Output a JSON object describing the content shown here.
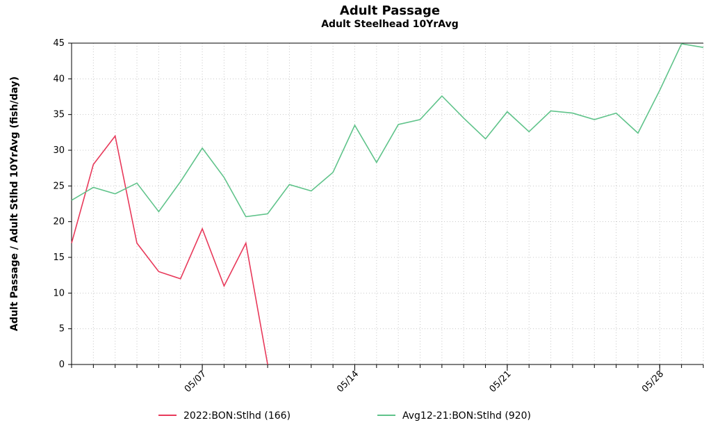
{
  "chart_data": {
    "type": "line",
    "title": "Adult Passage",
    "subtitle": "Adult Steelhead 10YrAvg",
    "ylabel": "Adult Passage / Adult Stlhd 10YrAvg (fish/day)",
    "xlabel": "",
    "ylim": [
      0,
      45
    ],
    "yticks": [
      0,
      5,
      10,
      15,
      20,
      25,
      30,
      35,
      40,
      45
    ],
    "xlim": [
      "2022-05-01",
      "2022-05-30"
    ],
    "xticks": [
      {
        "date": "2022-05-07",
        "label": "05/07"
      },
      {
        "date": "2022-05-14",
        "label": "05/14"
      },
      {
        "date": "2022-05-21",
        "label": "05/21"
      },
      {
        "date": "2022-05-28",
        "label": "05/28"
      }
    ],
    "grid": true,
    "legend_position": "bottom",
    "series": [
      {
        "name": "2022:BON:Stlhd (166)",
        "color": "#e8395a",
        "x": [
          "2022-05-01",
          "2022-05-02",
          "2022-05-03",
          "2022-05-04",
          "2022-05-05",
          "2022-05-06",
          "2022-05-07",
          "2022-05-08",
          "2022-05-09",
          "2022-05-10"
        ],
        "y": [
          17,
          28,
          32,
          17,
          13,
          12,
          19,
          11,
          17,
          0
        ]
      },
      {
        "name": "Avg12-21:BON:Stlhd (920)",
        "color": "#5fc38a",
        "x": [
          "2022-05-01",
          "2022-05-02",
          "2022-05-03",
          "2022-05-04",
          "2022-05-05",
          "2022-05-06",
          "2022-05-07",
          "2022-05-08",
          "2022-05-09",
          "2022-05-10",
          "2022-05-11",
          "2022-05-12",
          "2022-05-13",
          "2022-05-14",
          "2022-05-15",
          "2022-05-16",
          "2022-05-17",
          "2022-05-18",
          "2022-05-19",
          "2022-05-20",
          "2022-05-21",
          "2022-05-22",
          "2022-05-23",
          "2022-05-24",
          "2022-05-25",
          "2022-05-26",
          "2022-05-27",
          "2022-05-28",
          "2022-05-29",
          "2022-05-30"
        ],
        "y": [
          23,
          24.8,
          23.9,
          25.4,
          21.4,
          25.6,
          30.3,
          26.2,
          20.7,
          21.1,
          25.2,
          24.3,
          26.9,
          33.5,
          28.3,
          33.6,
          34.3,
          37.6,
          34.5,
          31.6,
          35.4,
          32.6,
          35.5,
          35.2,
          34.3,
          35.2,
          32.4,
          38.4,
          44.9,
          44.4
        ]
      }
    ]
  }
}
